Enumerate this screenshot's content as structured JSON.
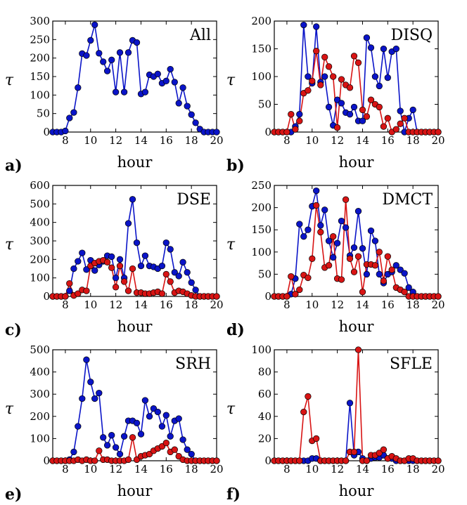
{
  "chart_data": [
    {
      "type": "line",
      "panel_letter": "a)",
      "title": "All",
      "xlabel": "hour",
      "ylabel": "τ",
      "xlim": [
        7,
        20
      ],
      "ylim": [
        0,
        300
      ],
      "xticks": [
        8,
        10,
        12,
        14,
        16,
        18,
        20
      ],
      "yticks": [
        0,
        50,
        100,
        150,
        200,
        250,
        300
      ],
      "series": [
        {
          "name": "All",
          "color": "#0a14c8",
          "x": [
            7.0,
            7.33,
            7.67,
            8.0,
            8.33,
            8.67,
            9.0,
            9.33,
            9.67,
            10.0,
            10.33,
            10.67,
            11.0,
            11.33,
            11.67,
            12.0,
            12.33,
            12.67,
            13.0,
            13.33,
            13.67,
            14.0,
            14.33,
            14.67,
            15.0,
            15.33,
            15.67,
            16.0,
            16.33,
            16.67,
            17.0,
            17.33,
            17.67,
            18.0,
            18.33,
            18.67,
            19.0,
            19.33,
            19.67,
            20.0
          ],
          "y": [
            0,
            0,
            0,
            3,
            38,
            53,
            120,
            212,
            207,
            248,
            290,
            213,
            190,
            165,
            195,
            108,
            215,
            108,
            215,
            248,
            242,
            103,
            108,
            155,
            150,
            157,
            132,
            138,
            170,
            135,
            78,
            120,
            70,
            47,
            25,
            8,
            0,
            0,
            0,
            0
          ]
        }
      ]
    },
    {
      "type": "line",
      "panel_letter": "b)",
      "title": "DISQ",
      "xlabel": "hour",
      "ylabel": "τ",
      "xlim": [
        7,
        20
      ],
      "ylim": [
        0,
        200
      ],
      "xticks": [
        8,
        10,
        12,
        14,
        16,
        18,
        20
      ],
      "yticks": [
        0,
        50,
        100,
        150,
        200
      ],
      "series": [
        {
          "name": "blue",
          "color": "#0a14c8",
          "x": [
            7.0,
            7.33,
            7.67,
            8.0,
            8.33,
            8.67,
            9.0,
            9.33,
            9.67,
            10.0,
            10.33,
            10.67,
            11.0,
            11.33,
            11.67,
            12.0,
            12.33,
            12.67,
            13.0,
            13.33,
            13.67,
            14.0,
            14.33,
            14.67,
            15.0,
            15.33,
            15.67,
            16.0,
            16.33,
            16.67,
            17.0,
            17.33,
            17.67,
            18.0,
            18.33,
            18.67,
            19.0,
            19.33,
            19.67,
            20.0
          ],
          "y": [
            0,
            0,
            0,
            0,
            0,
            10,
            32,
            193,
            100,
            88,
            190,
            90,
            100,
            45,
            12,
            58,
            52,
            35,
            32,
            45,
            20,
            20,
            170,
            152,
            100,
            83,
            150,
            98,
            145,
            150,
            38,
            0,
            25,
            40,
            0,
            0,
            0,
            0,
            0,
            0
          ]
        },
        {
          "name": "red",
          "color": "#d81414",
          "x": [
            7.0,
            7.33,
            7.67,
            8.0,
            8.33,
            8.67,
            9.0,
            9.33,
            9.67,
            10.0,
            10.33,
            10.67,
            11.0,
            11.33,
            11.67,
            12.0,
            12.33,
            12.67,
            13.0,
            13.33,
            13.67,
            14.0,
            14.33,
            14.67,
            15.0,
            15.33,
            15.67,
            16.0,
            16.33,
            16.67,
            17.0,
            17.33,
            17.67,
            18.0,
            18.33,
            18.67,
            19.0,
            19.33,
            19.67,
            20.0
          ],
          "y": [
            0,
            0,
            0,
            0,
            32,
            5,
            20,
            70,
            75,
            92,
            146,
            85,
            135,
            118,
            100,
            8,
            95,
            85,
            80,
            137,
            125,
            40,
            28,
            58,
            50,
            45,
            10,
            25,
            0,
            5,
            15,
            25,
            0,
            0,
            0,
            0,
            0,
            0,
            0,
            0
          ]
        }
      ]
    },
    {
      "type": "line",
      "panel_letter": "c)",
      "title": "DSE",
      "xlabel": "hour",
      "ylabel": "τ",
      "xlim": [
        7,
        20
      ],
      "ylim": [
        0,
        600
      ],
      "xticks": [
        8,
        10,
        12,
        14,
        16,
        18,
        20
      ],
      "yticks": [
        0,
        100,
        200,
        300,
        400,
        500,
        600
      ],
      "series": [
        {
          "name": "blue",
          "color": "#0a14c8",
          "x": [
            7.0,
            7.33,
            7.67,
            8.0,
            8.33,
            8.67,
            9.0,
            9.33,
            9.67,
            10.0,
            10.33,
            10.67,
            11.0,
            11.33,
            11.67,
            12.0,
            12.33,
            12.67,
            13.0,
            13.33,
            13.67,
            14.0,
            14.33,
            14.67,
            15.0,
            15.33,
            15.67,
            16.0,
            16.33,
            16.67,
            17.0,
            17.33,
            17.67,
            18.0,
            18.33,
            18.67,
            19.0,
            19.33,
            19.67,
            20.0
          ],
          "y": [
            0,
            0,
            0,
            0,
            30,
            150,
            190,
            235,
            145,
            195,
            140,
            170,
            190,
            220,
            215,
            100,
            200,
            100,
            395,
            525,
            290,
            165,
            220,
            165,
            160,
            150,
            165,
            290,
            255,
            130,
            110,
            185,
            130,
            75,
            35,
            0,
            0,
            0,
            0,
            0
          ]
        },
        {
          "name": "red",
          "color": "#d81414",
          "x": [
            7.0,
            7.33,
            7.67,
            8.0,
            8.33,
            8.67,
            9.0,
            9.33,
            9.67,
            10.0,
            10.33,
            10.67,
            11.0,
            11.33,
            11.67,
            12.0,
            12.33,
            12.67,
            13.0,
            13.33,
            13.67,
            14.0,
            14.33,
            14.67,
            15.0,
            15.33,
            15.67,
            16.0,
            16.33,
            16.67,
            17.0,
            17.33,
            17.67,
            18.0,
            18.33,
            18.67,
            19.0,
            19.33,
            19.67,
            20.0
          ],
          "y": [
            0,
            0,
            0,
            0,
            70,
            5,
            15,
            35,
            30,
            165,
            180,
            190,
            195,
            185,
            155,
            50,
            165,
            80,
            30,
            150,
            20,
            20,
            15,
            15,
            20,
            25,
            15,
            120,
            80,
            20,
            30,
            25,
            15,
            5,
            0,
            0,
            0,
            0,
            0,
            0
          ]
        }
      ]
    },
    {
      "type": "line",
      "panel_letter": "d)",
      "title": "DMCT",
      "xlabel": "hour",
      "ylabel": "τ",
      "xlim": [
        7,
        20
      ],
      "ylim": [
        0,
        250
      ],
      "xticks": [
        8,
        10,
        12,
        14,
        16,
        18,
        20
      ],
      "yticks": [
        0,
        50,
        100,
        150,
        200,
        250
      ],
      "series": [
        {
          "name": "blue",
          "color": "#0a14c8",
          "x": [
            7.0,
            7.33,
            7.67,
            8.0,
            8.33,
            8.67,
            9.0,
            9.33,
            9.67,
            10.0,
            10.33,
            10.67,
            11.0,
            11.33,
            11.67,
            12.0,
            12.33,
            12.67,
            13.0,
            13.33,
            13.67,
            14.0,
            14.33,
            14.67,
            15.0,
            15.33,
            15.67,
            16.0,
            16.33,
            16.67,
            17.0,
            17.33,
            17.67,
            18.0,
            18.33,
            18.67,
            19.0,
            19.33,
            19.67,
            20.0
          ],
          "y": [
            0,
            0,
            0,
            0,
            5,
            40,
            163,
            135,
            150,
            203,
            238,
            160,
            195,
            125,
            88,
            120,
            170,
            155,
            92,
            110,
            192,
            108,
            50,
            148,
            125,
            50,
            30,
            50,
            55,
            70,
            60,
            52,
            20,
            10,
            0,
            0,
            0,
            0,
            0,
            0
          ]
        },
        {
          "name": "red",
          "color": "#d81414",
          "x": [
            7.0,
            7.33,
            7.67,
            8.0,
            8.33,
            8.67,
            9.0,
            9.33,
            9.67,
            10.0,
            10.33,
            10.67,
            11.0,
            11.33,
            11.67,
            12.0,
            12.33,
            12.67,
            13.0,
            13.33,
            13.67,
            14.0,
            14.33,
            14.67,
            15.0,
            15.33,
            15.67,
            16.0,
            16.33,
            16.67,
            17.0,
            17.33,
            17.67,
            18.0,
            18.33,
            18.67,
            19.0,
            19.33,
            19.67,
            20.0
          ],
          "y": [
            0,
            0,
            0,
            0,
            45,
            5,
            15,
            48,
            42,
            85,
            205,
            145,
            65,
            70,
            135,
            40,
            38,
            218,
            85,
            55,
            90,
            10,
            72,
            72,
            70,
            100,
            35,
            90,
            60,
            20,
            15,
            10,
            0,
            0,
            0,
            0,
            0,
            0,
            0,
            0
          ]
        }
      ]
    },
    {
      "type": "line",
      "panel_letter": "e)",
      "title": "SRH",
      "xlabel": "hour",
      "ylabel": "τ",
      "xlim": [
        7,
        20
      ],
      "ylim": [
        0,
        500
      ],
      "xticks": [
        8,
        10,
        12,
        14,
        16,
        18,
        20
      ],
      "yticks": [
        0,
        100,
        200,
        300,
        400,
        500
      ],
      "series": [
        {
          "name": "blue",
          "color": "#0a14c8",
          "x": [
            7.0,
            7.33,
            7.67,
            8.0,
            8.33,
            8.67,
            9.0,
            9.33,
            9.67,
            10.0,
            10.33,
            10.67,
            11.0,
            11.33,
            11.67,
            12.0,
            12.33,
            12.67,
            13.0,
            13.33,
            13.67,
            14.0,
            14.33,
            14.67,
            15.0,
            15.33,
            15.67,
            16.0,
            16.33,
            16.67,
            17.0,
            17.33,
            17.67,
            18.0,
            18.33,
            18.67,
            19.0,
            19.33,
            19.67,
            20.0
          ],
          "y": [
            0,
            0,
            0,
            0,
            5,
            40,
            155,
            280,
            455,
            355,
            280,
            305,
            105,
            70,
            115,
            60,
            30,
            110,
            180,
            180,
            170,
            120,
            272,
            200,
            235,
            220,
            155,
            205,
            110,
            180,
            190,
            95,
            50,
            30,
            0,
            0,
            0,
            0,
            0,
            0
          ]
        },
        {
          "name": "red",
          "color": "#d81414",
          "x": [
            7.0,
            7.33,
            7.67,
            8.0,
            8.33,
            8.67,
            9.0,
            9.33,
            9.67,
            10.0,
            10.33,
            10.67,
            11.0,
            11.33,
            11.67,
            12.0,
            12.33,
            12.67,
            13.0,
            13.33,
            13.67,
            14.0,
            14.33,
            14.67,
            15.0,
            15.33,
            15.67,
            16.0,
            16.33,
            16.67,
            17.0,
            17.33,
            17.67,
            18.0,
            18.33,
            18.67,
            19.0,
            19.33,
            19.67,
            20.0
          ],
          "y": [
            0,
            0,
            0,
            0,
            0,
            0,
            5,
            0,
            5,
            0,
            0,
            45,
            5,
            5,
            0,
            0,
            0,
            0,
            5,
            105,
            5,
            20,
            25,
            30,
            45,
            55,
            65,
            80,
            40,
            50,
            20,
            5,
            0,
            0,
            0,
            0,
            0,
            0,
            0,
            0
          ]
        }
      ]
    },
    {
      "type": "line",
      "panel_letter": "f)",
      "title": "SFLE",
      "xlabel": "hour",
      "ylabel": "τ",
      "xlim": [
        7,
        20
      ],
      "ylim": [
        0,
        100
      ],
      "xticks": [
        8,
        10,
        12,
        14,
        16,
        18,
        20
      ],
      "yticks": [
        0,
        20,
        40,
        60,
        80,
        100
      ],
      "series": [
        {
          "name": "blue",
          "color": "#0a14c8",
          "x": [
            7.0,
            7.33,
            7.67,
            8.0,
            8.33,
            8.67,
            9.0,
            9.33,
            9.67,
            10.0,
            10.33,
            10.67,
            11.0,
            11.33,
            11.67,
            12.0,
            12.33,
            12.67,
            13.0,
            13.33,
            13.67,
            14.0,
            14.33,
            14.67,
            15.0,
            15.33,
            15.67,
            16.0,
            16.33,
            16.67,
            17.0,
            17.33,
            17.67,
            18.0,
            18.33,
            18.67,
            19.0,
            19.33,
            19.67,
            20.0
          ],
          "y": [
            0,
            0,
            0,
            0,
            0,
            0,
            0,
            0,
            0,
            2,
            2,
            0,
            0,
            0,
            0,
            0,
            0,
            0,
            52,
            5,
            8,
            2,
            0,
            2,
            3,
            3,
            5,
            2,
            2,
            0,
            0,
            0,
            0,
            0,
            0,
            0,
            0,
            0,
            0,
            0
          ]
        },
        {
          "name": "red",
          "color": "#d81414",
          "x": [
            7.0,
            7.33,
            7.67,
            8.0,
            8.33,
            8.67,
            9.0,
            9.33,
            9.67,
            10.0,
            10.33,
            10.67,
            11.0,
            11.33,
            11.67,
            12.0,
            12.33,
            12.67,
            13.0,
            13.33,
            13.67,
            14.0,
            14.33,
            14.67,
            15.0,
            15.33,
            15.67,
            16.0,
            16.33,
            16.67,
            17.0,
            17.33,
            17.67,
            18.0,
            18.33,
            18.67,
            19.0,
            19.33,
            19.67,
            20.0
          ],
          "y": [
            0,
            0,
            0,
            0,
            0,
            0,
            0,
            44,
            58,
            18,
            20,
            0,
            0,
            0,
            0,
            0,
            0,
            0,
            8,
            8,
            100,
            0,
            0,
            5,
            5,
            7,
            10,
            2,
            4,
            2,
            0,
            0,
            2,
            2,
            0,
            0,
            0,
            0,
            0,
            0
          ]
        }
      ]
    }
  ]
}
